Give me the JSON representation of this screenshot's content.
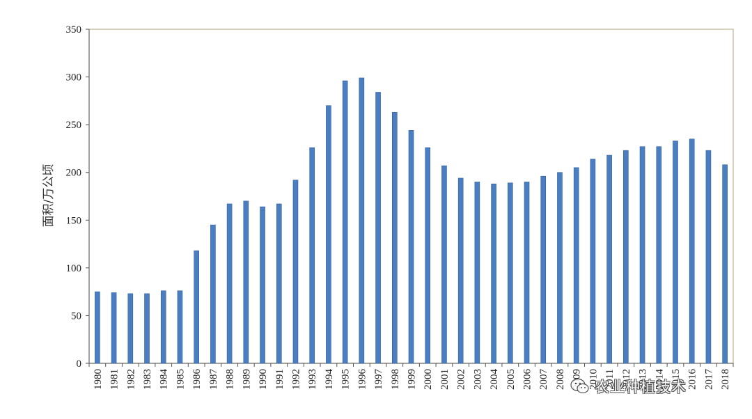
{
  "chart_data": {
    "type": "bar",
    "ylabel": "面积/万公顷",
    "xlabel": "",
    "ylim": [
      0,
      350
    ],
    "yticks": [
      0,
      50,
      100,
      150,
      200,
      250,
      300,
      350
    ],
    "grid": false,
    "bar_color": "#4a7ec0",
    "bar_edge_color": "#2f5f9e",
    "frame_color": "#bfb590",
    "categories": [
      "1980",
      "1981",
      "1982",
      "1983",
      "1984",
      "1985",
      "1986",
      "1987",
      "1988",
      "1989",
      "1990",
      "1991",
      "1992",
      "1993",
      "1994",
      "1995",
      "1996",
      "1997",
      "1998",
      "1999",
      "2000",
      "2001",
      "2002",
      "2003",
      "2004",
      "2005",
      "2006",
      "2007",
      "2008",
      "2009",
      "2010",
      "2011",
      "2012",
      "2013",
      "2014",
      "2015",
      "2016",
      "2017",
      "2018"
    ],
    "values": [
      75,
      74,
      73,
      73,
      76,
      76,
      118,
      145,
      167,
      170,
      164,
      167,
      192,
      226,
      270,
      296,
      299,
      284,
      263,
      244,
      226,
      207,
      194,
      190,
      188,
      189,
      190,
      196,
      200,
      205,
      214,
      218,
      223,
      227,
      227,
      233,
      235,
      223,
      208
    ]
  },
  "watermark": {
    "text": "农业种植技术",
    "icon": "wechat-icon"
  }
}
